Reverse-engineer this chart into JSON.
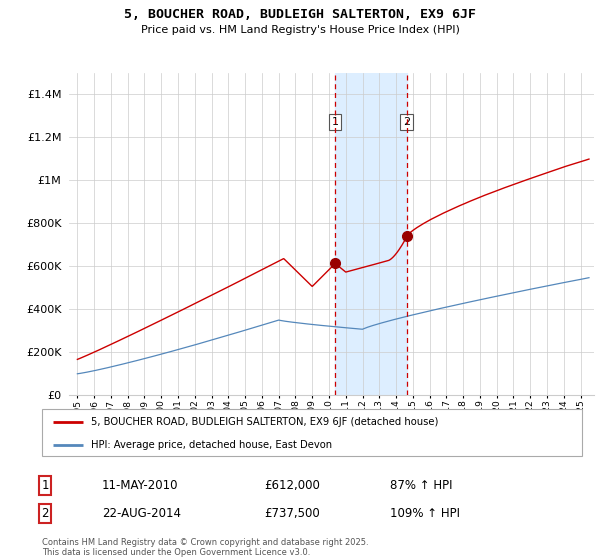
{
  "title": "5, BOUCHER ROAD, BUDLEIGH SALTERTON, EX9 6JF",
  "subtitle": "Price paid vs. HM Land Registry's House Price Index (HPI)",
  "ylim": [
    0,
    1500000
  ],
  "yticks": [
    0,
    200000,
    400000,
    600000,
    800000,
    1000000,
    1200000,
    1400000
  ],
  "sale1_year": 2010.37,
  "sale1_price": 612000,
  "sale1_label": "1",
  "sale1_date": "11-MAY-2010",
  "sale1_hpi": "87% ↑ HPI",
  "sale2_year": 2014.64,
  "sale2_price": 737500,
  "sale2_label": "2",
  "sale2_date": "22-AUG-2014",
  "sale2_hpi": "109% ↑ HPI",
  "legend_property": "5, BOUCHER ROAD, BUDLEIGH SALTERTON, EX9 6JF (detached house)",
  "legend_hpi": "HPI: Average price, detached house, East Devon",
  "red_color": "#cc0000",
  "blue_color": "#5588bb",
  "shade_color": "#ddeeff",
  "footer": "Contains HM Land Registry data © Crown copyright and database right 2025.\nThis data is licensed under the Open Government Licence v3.0.",
  "background_color": "#ffffff",
  "grid_color": "#cccccc",
  "xstart": 1994.5,
  "xend": 2025.8
}
